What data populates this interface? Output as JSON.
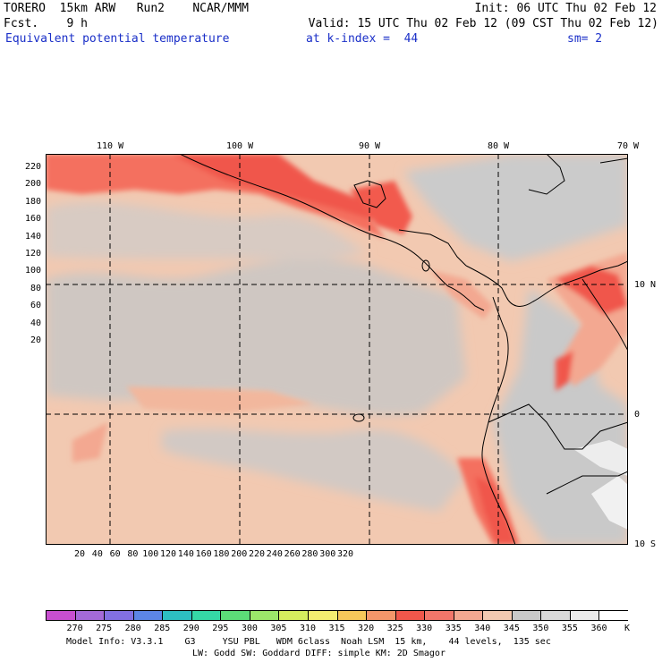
{
  "header": {
    "title": "TORERO  15km ARW   Run2    NCAR/MMM",
    "init": "Init: 06 UTC Thu 02 Feb 12",
    "fcst": "Fcst.    9 h",
    "valid": "Valid: 15 UTC Thu 02 Feb 12 (09 CST Thu 02 Feb 12)",
    "field": "Equivalent potential temperature",
    "level": "at k-index =  44",
    "smooth": "sm= 2"
  },
  "map": {
    "lon_labels": [
      "110 W",
      "100 W",
      "90 W",
      "80 W",
      "70 W"
    ],
    "lat_labels": [
      "10 N",
      "0",
      "10 S"
    ],
    "x_ticks": [
      "20",
      "40",
      "60",
      "80",
      "100",
      "120",
      "140",
      "160",
      "180",
      "200",
      "220",
      "240",
      "260",
      "280",
      "300",
      "320"
    ],
    "y_ticks": [
      "220",
      "200",
      "180",
      "160",
      "140",
      "120",
      "100",
      "80",
      "60",
      "40",
      "20"
    ],
    "colors": {
      "ocean_base": "#f2c9b1",
      "grey_band": "#cfc7c2",
      "land_grey": "#c9c9c9",
      "hot": "#f4705f",
      "hotter": "#f0574b",
      "light_land": "#e8e8e8"
    }
  },
  "colorbar": {
    "unit": "K",
    "labels": [
      "270",
      "275",
      "280",
      "285",
      "290",
      "295",
      "300",
      "305",
      "310",
      "315",
      "320",
      "325",
      "330",
      "335",
      "340",
      "345",
      "350",
      "355",
      "360"
    ],
    "colors": [
      "#c84fd0",
      "#a46ad8",
      "#8270e2",
      "#5c86e6",
      "#2dbfc2",
      "#35d8a6",
      "#5cdc78",
      "#9ce66a",
      "#d6ee5e",
      "#f4ee70",
      "#f6c85a",
      "#f4966a",
      "#f0574b",
      "#f2766a",
      "#f3a891",
      "#f2c9b1",
      "#c9c9c9",
      "#d9d9d9",
      "#ebebeb",
      "#ffffff"
    ]
  },
  "footer": {
    "line1": "Model Info: V3.3.1    G3     YSU PBL   WDM 6class  Noah LSM  15 km,    44 levels,  135 sec",
    "line2": "LW: Godd SW: Goddard DIFF: simple KM: 2D Smagor"
  }
}
